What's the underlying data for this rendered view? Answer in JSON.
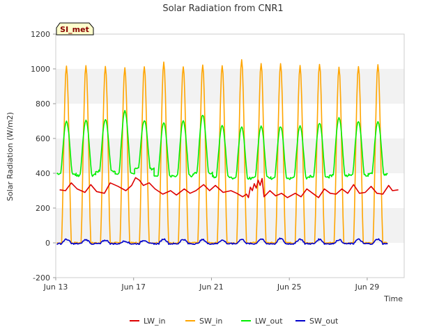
{
  "chart_data": {
    "type": "line",
    "title": "Solar Radiation from CNR1",
    "xlabel": "Time",
    "ylabel": "Solar Radiation (W/m2)",
    "badge": "SI_met",
    "xlim": [
      13,
      30.9
    ],
    "ylim": [
      -200,
      1200
    ],
    "x_ticks": [
      {
        "value": 13,
        "label": "Jun 13"
      },
      {
        "value": 17,
        "label": "Jun 17"
      },
      {
        "value": 21,
        "label": "Jun 21"
      },
      {
        "value": 25,
        "label": "Jun 25"
      },
      {
        "value": 29,
        "label": "Jun 29"
      }
    ],
    "y_ticks": [
      -200,
      0,
      200,
      400,
      600,
      800,
      1000,
      1200
    ],
    "grid": "horizontal alternating bands",
    "legend_position": "bottom",
    "series": [
      {
        "name": "LW_in",
        "color": "#dd0000",
        "x": [
          13.2,
          13.5,
          13.8,
          14.1,
          14.5,
          14.8,
          15.1,
          15.5,
          15.8,
          16.2,
          16.6,
          16.9,
          17.1,
          17.3,
          17.5,
          17.8,
          18.1,
          18.5,
          18.9,
          19.2,
          19.6,
          19.9,
          20.2,
          20.6,
          20.9,
          21.2,
          21.6,
          22.0,
          22.3,
          22.6,
          22.8,
          22.9,
          23.0,
          23.1,
          23.2,
          23.3,
          23.4,
          23.5,
          23.6,
          23.7,
          24.0,
          24.3,
          24.6,
          24.9,
          25.3,
          25.6,
          25.9,
          26.2,
          26.5,
          26.8,
          27.1,
          27.4,
          27.7,
          28.0,
          28.3,
          28.6,
          28.9,
          29.2,
          29.5,
          29.8,
          30.1,
          30.3,
          30.6
        ],
        "y": [
          305,
          300,
          345,
          310,
          290,
          335,
          295,
          285,
          345,
          325,
          300,
          330,
          375,
          360,
          330,
          345,
          310,
          280,
          300,
          275,
          310,
          285,
          300,
          335,
          300,
          330,
          290,
          300,
          285,
          265,
          280,
          260,
          320,
          300,
          340,
          315,
          360,
          330,
          370,
          265,
          300,
          270,
          285,
          260,
          285,
          265,
          310,
          285,
          260,
          310,
          285,
          280,
          310,
          285,
          335,
          285,
          290,
          325,
          285,
          280,
          330,
          300,
          305
        ]
      },
      {
        "name": "SW_in",
        "color": "#ffa500",
        "peaks": [
          {
            "day": 13,
            "max": 1015
          },
          {
            "day": 14,
            "max": 1020
          },
          {
            "day": 15,
            "max": 1015
          },
          {
            "day": 16,
            "max": 1005
          },
          {
            "day": 17,
            "max": 1015
          },
          {
            "day": 18,
            "max": 1040
          },
          {
            "day": 19,
            "max": 1015
          },
          {
            "day": 20,
            "max": 1020
          },
          {
            "day": 21,
            "max": 1020
          },
          {
            "day": 22,
            "max": 1055
          },
          {
            "day": 23,
            "max": 1030
          },
          {
            "day": 24,
            "max": 1030
          },
          {
            "day": 25,
            "max": 1020
          },
          {
            "day": 26,
            "max": 1030
          },
          {
            "day": 27,
            "max": 1010
          },
          {
            "day": 28,
            "max": 1015
          },
          {
            "day": 29,
            "max": 1025
          }
        ],
        "night_value": 0
      },
      {
        "name": "LW_out",
        "color": "#00ee00",
        "peaks": [
          {
            "day": 13,
            "max": 700,
            "min": 395
          },
          {
            "day": 14,
            "max": 705,
            "min": 390
          },
          {
            "day": 15,
            "max": 710,
            "min": 410
          },
          {
            "day": 16,
            "max": 760,
            "min": 400
          },
          {
            "day": 17,
            "max": 705,
            "min": 425
          },
          {
            "day": 18,
            "max": 690,
            "min": 385
          },
          {
            "day": 19,
            "max": 700,
            "min": 385
          },
          {
            "day": 20,
            "max": 735,
            "min": 400
          },
          {
            "day": 21,
            "max": 675,
            "min": 380
          },
          {
            "day": 22,
            "max": 665,
            "min": 370
          },
          {
            "day": 23,
            "max": 670,
            "min": 375
          },
          {
            "day": 24,
            "max": 670,
            "min": 370
          },
          {
            "day": 25,
            "max": 670,
            "min": 375
          },
          {
            "day": 26,
            "max": 690,
            "min": 380
          },
          {
            "day": 27,
            "max": 720,
            "min": 385
          },
          {
            "day": 28,
            "max": 700,
            "min": 390
          },
          {
            "day": 29,
            "max": 695,
            "min": 395
          }
        ]
      },
      {
        "name": "SW_out",
        "color": "#0000cc",
        "peaks": [
          {
            "day": 13,
            "max": 20
          },
          {
            "day": 14,
            "max": 18
          },
          {
            "day": 15,
            "max": 15
          },
          {
            "day": 16,
            "max": 10
          },
          {
            "day": 17,
            "max": 15
          },
          {
            "day": 18,
            "max": 22
          },
          {
            "day": 19,
            "max": 20
          },
          {
            "day": 20,
            "max": 18
          },
          {
            "day": 21,
            "max": 15
          },
          {
            "day": 22,
            "max": 20
          },
          {
            "day": 23,
            "max": 22
          },
          {
            "day": 24,
            "max": 25
          },
          {
            "day": 25,
            "max": 22
          },
          {
            "day": 26,
            "max": 20
          },
          {
            "day": 27,
            "max": 18
          },
          {
            "day": 28,
            "max": 20
          },
          {
            "day": 29,
            "max": 22
          }
        ],
        "night_value": -5
      }
    ]
  }
}
